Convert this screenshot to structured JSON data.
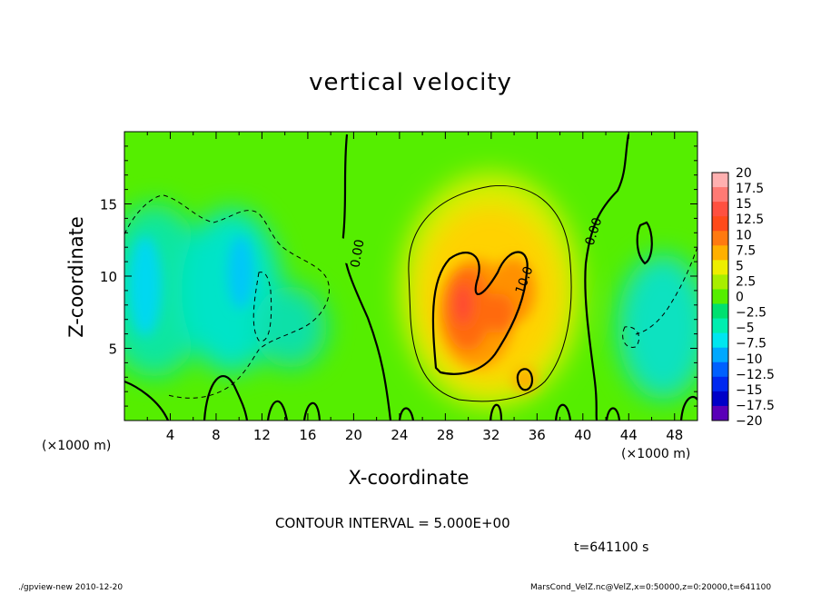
{
  "chart_data": {
    "type": "heatmap",
    "title": "vertical velocity",
    "xlabel": "X-coordinate",
    "ylabel": "Z-coordinate",
    "x_unit": "(×1000 m)",
    "y_unit": "(×1000 m)",
    "xlim": [
      0,
      50
    ],
    "ylim": [
      0,
      20
    ],
    "x_ticks": [
      4,
      8,
      12,
      16,
      20,
      24,
      28,
      32,
      36,
      40,
      44,
      48
    ],
    "y_ticks": [
      5,
      10,
      15
    ],
    "colorbar": {
      "levels": [
        "20",
        "17.5",
        "15",
        "12.5",
        "10",
        "7.5",
        "5",
        "2.5",
        "0",
        "−2.5",
        "−5",
        "−7.5",
        "−10",
        "−12.5",
        "−15",
        "−17.5",
        "−20"
      ],
      "colors": [
        "#ffb0b0",
        "#ff7a74",
        "#ff5040",
        "#ff4a1a",
        "#ff7a10",
        "#ffb000",
        "#eeee00",
        "#a8ee00",
        "#55ee00",
        "#00e070",
        "#00eeb0",
        "#00e6f0",
        "#00a8ff",
        "#0060ff",
        "#0028f0",
        "#0000c8",
        "#5a00b8"
      ]
    },
    "contour_labels": [
      "0.00",
      "10.0",
      "0.00"
    ],
    "contour_interval": "CONTOUR INTERVAL = 5.000E+00",
    "time": "t=641100 s"
  },
  "footer": {
    "left": "./gpview-new   2010-12-20",
    "right": "MarsCond_VelZ.nc@VelZ,x=0:50000,z=0:20000,t=641100"
  }
}
